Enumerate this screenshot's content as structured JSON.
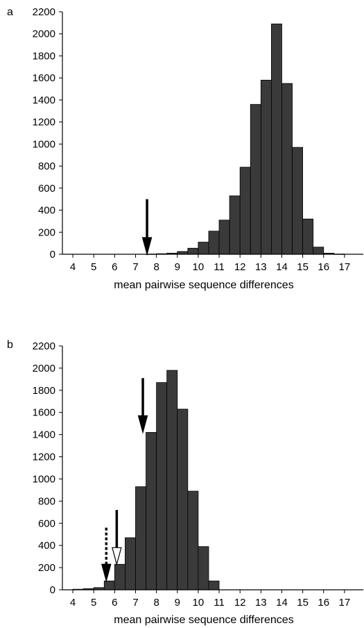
{
  "panels": [
    {
      "letter": "a"
    },
    {
      "letter": "b"
    }
  ],
  "chart_data": [
    {
      "type": "bar",
      "title": "",
      "xlabel": "mean pairwise sequence differences",
      "ylabel": "",
      "xlim": [
        3.5,
        17.9
      ],
      "ylim": [
        0,
        2200
      ],
      "x_ticks": [
        "4",
        "5",
        "6",
        "7",
        "8",
        "9",
        "10",
        "11",
        "12",
        "13",
        "14",
        "15",
        "16",
        "17"
      ],
      "y_ticks": [
        "0",
        "200",
        "400",
        "600",
        "800",
        "1000",
        "1200",
        "1400",
        "1600",
        "1800",
        "2000",
        "2200"
      ],
      "bin_width": 0.5,
      "bins_left_edge": [
        7.5,
        8.0,
        8.5,
        9.0,
        9.5,
        10.0,
        10.5,
        11.0,
        11.5,
        12.0,
        12.5,
        13.0,
        13.5,
        14.0,
        14.5,
        15.0,
        15.5,
        16.0,
        16.5
      ],
      "values": [
        2,
        5,
        10,
        25,
        55,
        110,
        210,
        310,
        530,
        790,
        1360,
        1580,
        2090,
        1550,
        970,
        320,
        65,
        10,
        2
      ],
      "bar_color": "#3a3a3a",
      "grid": false,
      "annotations": [
        {
          "type": "arrow",
          "style": "solid-filled",
          "x": 7.55,
          "y_top": 500,
          "y_tip": 0
        }
      ]
    },
    {
      "type": "bar",
      "title": "",
      "xlabel": "mean pairwise sequence differences",
      "ylabel": "",
      "xlim": [
        3.5,
        17.9
      ],
      "ylim": [
        0,
        2200
      ],
      "x_ticks": [
        "4",
        "5",
        "6",
        "7",
        "8",
        "9",
        "10",
        "11",
        "12",
        "13",
        "14",
        "15",
        "16",
        "17"
      ],
      "y_ticks": [
        "0",
        "200",
        "400",
        "600",
        "800",
        "1000",
        "1200",
        "1400",
        "1600",
        "1800",
        "2000",
        "2200"
      ],
      "bin_width": 0.5,
      "bins_left_edge": [
        4.0,
        4.5,
        5.0,
        5.5,
        6.0,
        6.5,
        7.0,
        7.5,
        8.0,
        8.5,
        9.0,
        9.5,
        10.0,
        10.5
      ],
      "values": [
        5,
        10,
        20,
        80,
        230,
        470,
        930,
        1420,
        1870,
        1980,
        1630,
        890,
        390,
        80
      ],
      "bar_color": "#3a3a3a",
      "grid": false,
      "annotations": [
        {
          "type": "arrow",
          "style": "solid-filled",
          "x": 7.35,
          "y_top": 1910,
          "y_tip": 1420
        },
        {
          "type": "arrow",
          "style": "solid-hollow-head",
          "x": 6.1,
          "y_top": 720,
          "y_tip": 230
        },
        {
          "type": "arrow",
          "style": "dotted-filled",
          "x": 5.6,
          "y_top": 560,
          "y_tip": 80
        }
      ]
    }
  ]
}
